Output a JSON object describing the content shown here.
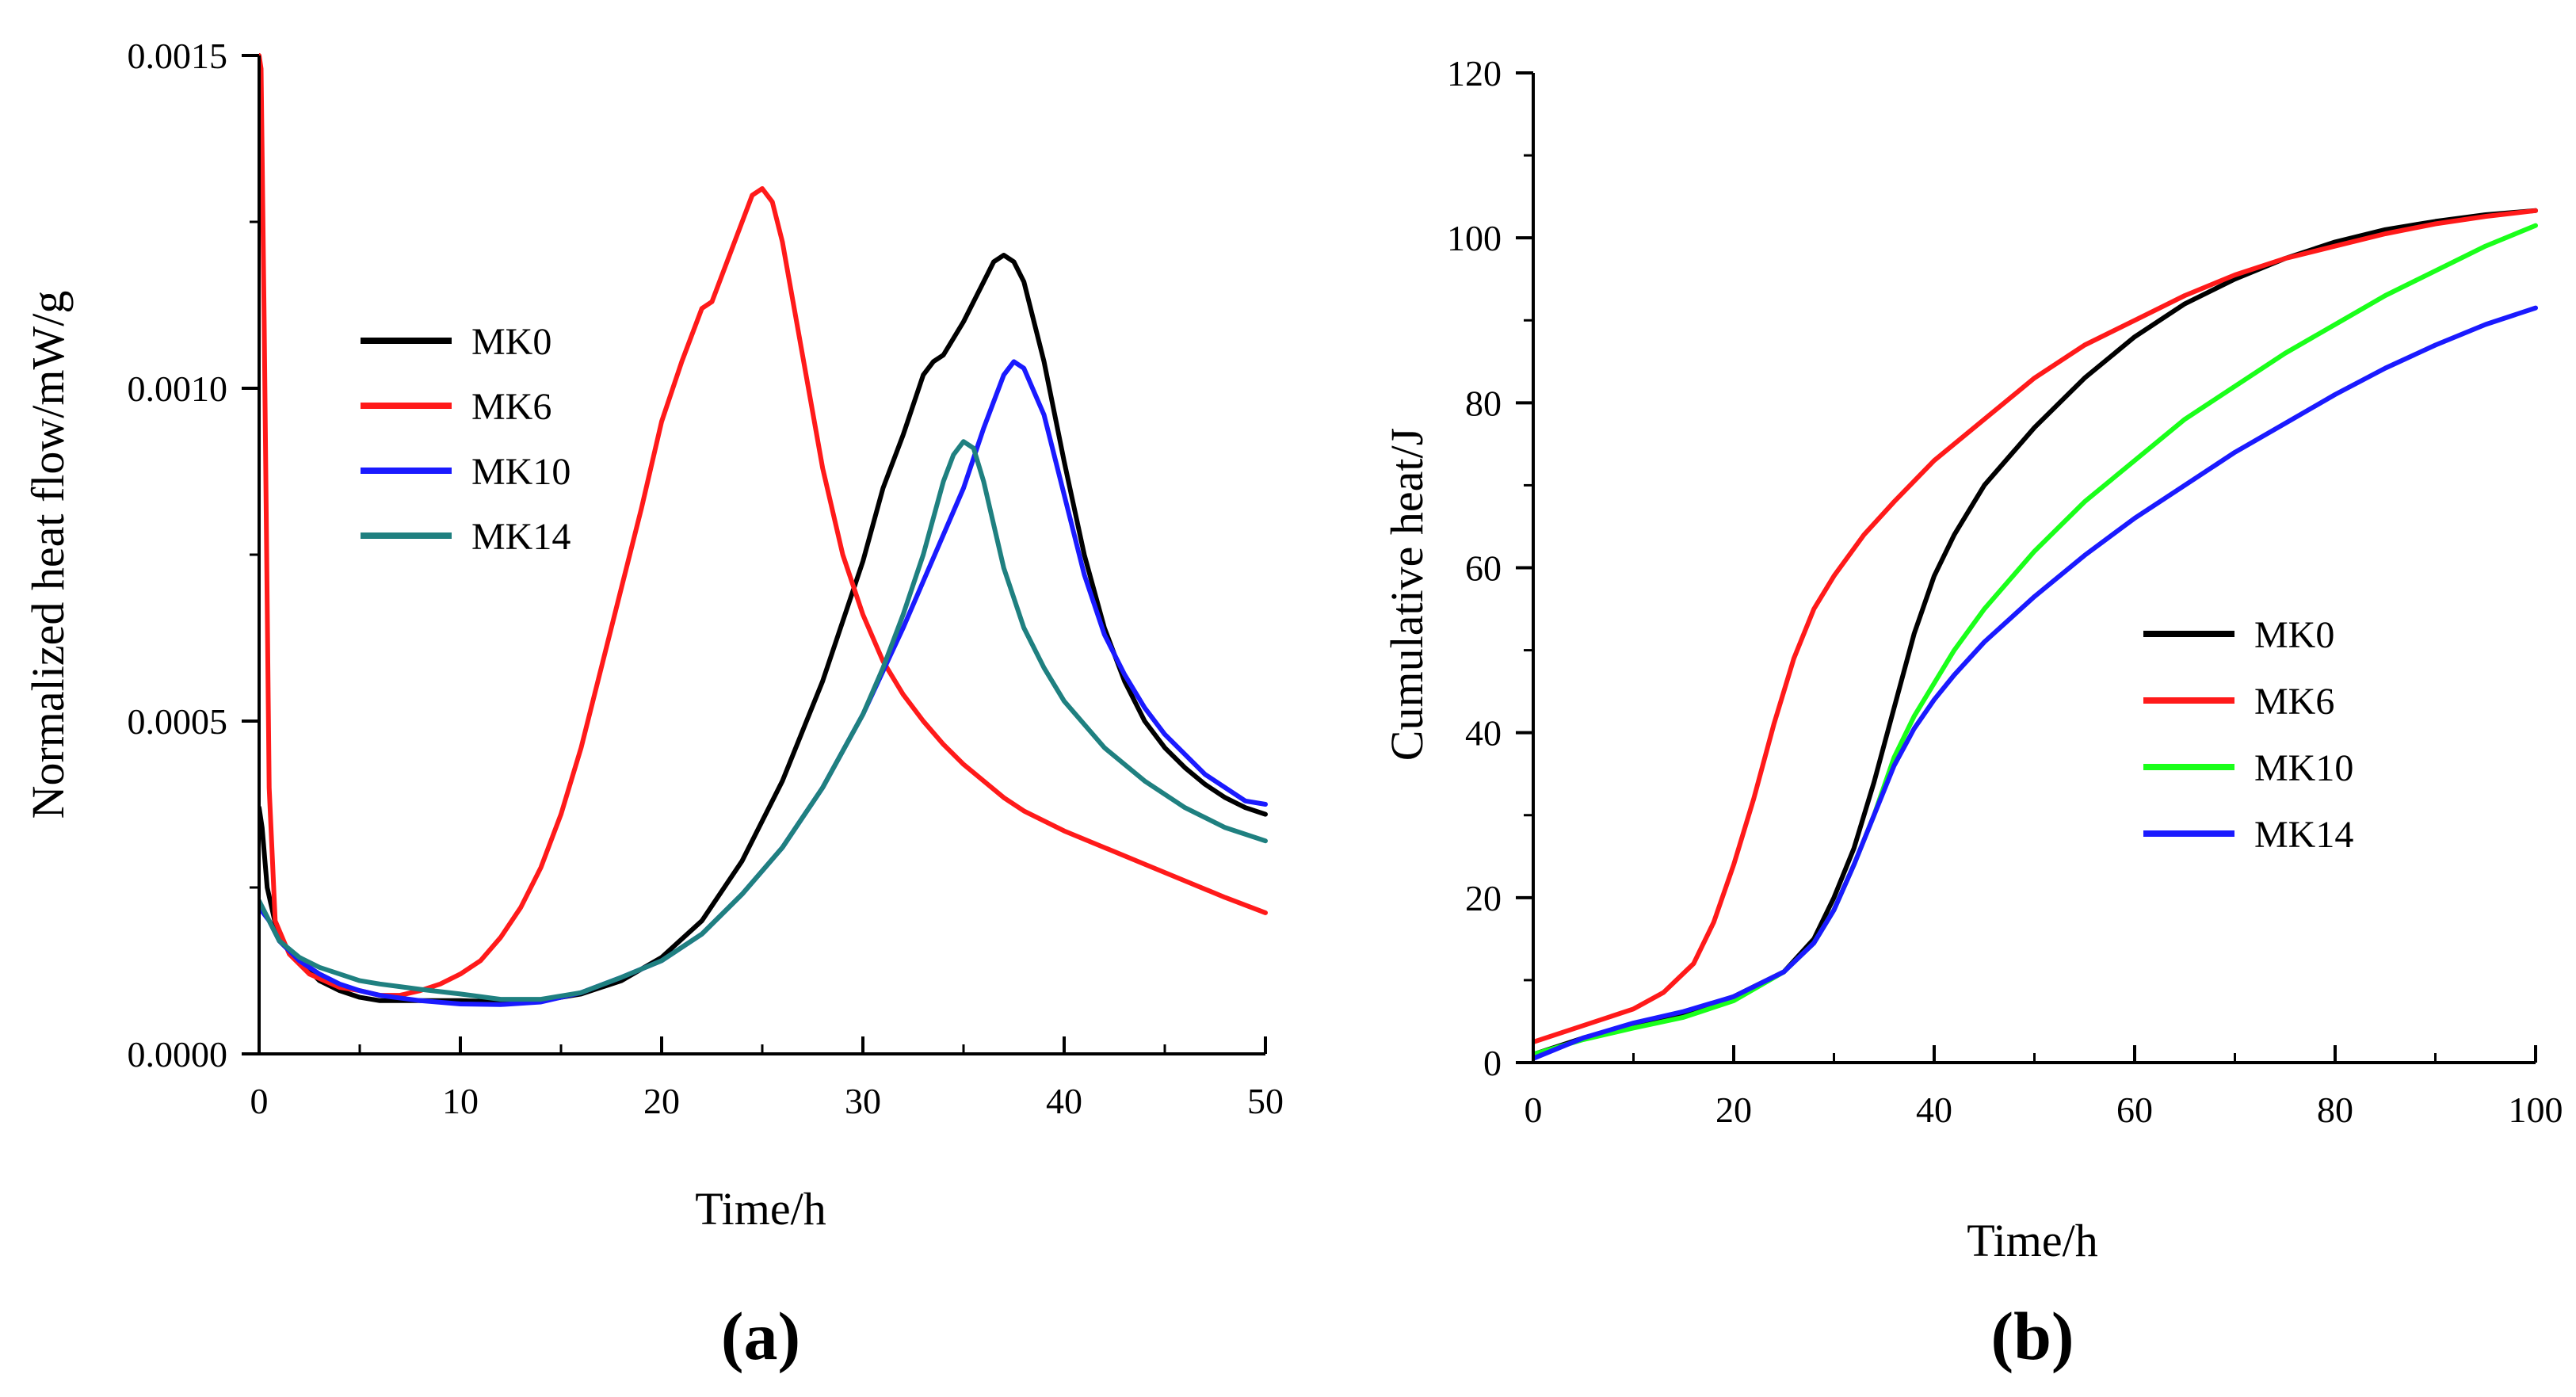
{
  "chart_data": [
    {
      "id": "a",
      "type": "line",
      "caption": "(a)",
      "xlabel": "Time/h",
      "ylabel": "Normalized heat flow/mW/g",
      "xlim": [
        0,
        50
      ],
      "ylim": [
        0,
        0.0015
      ],
      "xticks": [
        0,
        10,
        20,
        30,
        40,
        50
      ],
      "xtick_labels": [
        "0",
        "10",
        "20",
        "30",
        "40",
        "50"
      ],
      "yticks": [
        0,
        0.0005,
        0.001,
        0.0015
      ],
      "ytick_labels": [
        "0.0000",
        "0.0005",
        "0.0010",
        "0.0015"
      ],
      "legend_position": "upper-left",
      "series": [
        {
          "name": "MK0",
          "color": "#000000",
          "x": [
            0,
            0.15,
            0.4,
            1,
            2,
            3,
            4,
            5,
            6,
            7,
            8,
            10,
            12,
            14,
            16,
            18,
            20,
            22,
            24,
            26,
            28,
            30,
            31,
            32,
            33,
            33.5,
            34,
            35,
            36,
            36.5,
            37,
            37.5,
            38,
            39,
            40,
            41,
            42,
            43,
            44,
            45,
            46,
            47,
            48,
            49,
            50
          ],
          "y": [
            0.00037,
            0.00034,
            0.00025,
            0.00017,
            0.00014,
            0.00011,
            9.5e-05,
            8.5e-05,
            8e-05,
            8e-05,
            8e-05,
            8e-05,
            7.8e-05,
            8e-05,
            9e-05,
            0.00011,
            0.000145,
            0.0002,
            0.00029,
            0.00041,
            0.00056,
            0.00074,
            0.00085,
            0.00093,
            0.00102,
            0.00104,
            0.00105,
            0.0011,
            0.00116,
            0.00119,
            0.0012,
            0.00119,
            0.00116,
            0.00104,
            0.00089,
            0.00075,
            0.00064,
            0.00056,
            0.0005,
            0.00046,
            0.00043,
            0.000405,
            0.000385,
            0.00037,
            0.00036
          ]
        },
        {
          "name": "MK6",
          "color": "#ff1a1a",
          "x": [
            0,
            0.1,
            0.25,
            0.5,
            0.8,
            1.5,
            2.5,
            4,
            5,
            6,
            7,
            8,
            9,
            10,
            11,
            12,
            13,
            14,
            15,
            16,
            17,
            18,
            19,
            20,
            21,
            21.5,
            22,
            22.5,
            23,
            23.5,
            24,
            24.5,
            25,
            25.5,
            26,
            27,
            28,
            29,
            30,
            31,
            32,
            33,
            34,
            35,
            36,
            37,
            38,
            40,
            42,
            44,
            46,
            48,
            50
          ],
          "y": [
            0.0015,
            0.00148,
            0.0011,
            0.0004,
            0.0002,
            0.00015,
            0.00012,
            0.0001,
            9.5e-05,
            8.8e-05,
            8.8e-05,
            9.5e-05,
            0.000105,
            0.00012,
            0.00014,
            0.000175,
            0.00022,
            0.00028,
            0.00036,
            0.00046,
            0.00058,
            0.0007,
            0.00082,
            0.00095,
            0.00104,
            0.00108,
            0.00112,
            0.00113,
            0.00117,
            0.00121,
            0.00125,
            0.00129,
            0.0013,
            0.00128,
            0.00122,
            0.00105,
            0.00088,
            0.00075,
            0.00066,
            0.00059,
            0.00054,
            0.0005,
            0.000465,
            0.000435,
            0.00041,
            0.000385,
            0.000365,
            0.000335,
            0.00031,
            0.000285,
            0.00026,
            0.000235,
            0.000212
          ]
        },
        {
          "name": "MK10",
          "color": "#1a1aff",
          "x": [
            0,
            0.5,
            1,
            2,
            3,
            4,
            5,
            6,
            8,
            10,
            12,
            14,
            16,
            18,
            20,
            22,
            24,
            26,
            28,
            30,
            32,
            33,
            34,
            35,
            36,
            37,
            37.5,
            38,
            39,
            40,
            41,
            42,
            43,
            44,
            45,
            46,
            47,
            48,
            49,
            50
          ],
          "y": [
            0.00022,
            0.0002,
            0.00017,
            0.00014,
            0.00012,
            0.000105,
            9.5e-05,
            8.8e-05,
            8e-05,
            7.5e-05,
            7.4e-05,
            7.8e-05,
            9.2e-05,
            0.000115,
            0.00014,
            0.00018,
            0.00024,
            0.00031,
            0.0004,
            0.00051,
            0.00064,
            0.00071,
            0.00078,
            0.00085,
            0.00094,
            0.00102,
            0.00104,
            0.00103,
            0.00096,
            0.00084,
            0.00072,
            0.00063,
            0.00057,
            0.00052,
            0.00048,
            0.00045,
            0.00042,
            0.0004,
            0.00038,
            0.000375
          ]
        },
        {
          "name": "MK14",
          "color": "#1f8080",
          "x": [
            0,
            0.5,
            1,
            2,
            3,
            4,
            5,
            6,
            8,
            10,
            12,
            14,
            16,
            18,
            20,
            22,
            24,
            26,
            28,
            30,
            31,
            32,
            33,
            34,
            34.5,
            35,
            35.5,
            36,
            37,
            38,
            39,
            40,
            42,
            44,
            46,
            48,
            50
          ],
          "y": [
            0.00023,
            0.0002,
            0.00017,
            0.000145,
            0.00013,
            0.00012,
            0.00011,
            0.000105,
            9.7e-05,
            9e-05,
            8.2e-05,
            8.2e-05,
            9.2e-05,
            0.000115,
            0.00014,
            0.00018,
            0.00024,
            0.00031,
            0.0004,
            0.00051,
            0.00058,
            0.00066,
            0.00075,
            0.00086,
            0.0009,
            0.00092,
            0.00091,
            0.00086,
            0.00073,
            0.00064,
            0.00058,
            0.00053,
            0.00046,
            0.00041,
            0.00037,
            0.00034,
            0.00032
          ]
        }
      ]
    },
    {
      "id": "b",
      "type": "line",
      "caption": "(b)",
      "xlabel": "Time/h",
      "ylabel": "Cumulative heat/J",
      "xlim": [
        0,
        100
      ],
      "ylim": [
        0,
        120
      ],
      "xticks": [
        0,
        20,
        40,
        60,
        80,
        100
      ],
      "xtick_labels": [
        "0",
        "20",
        "40",
        "60",
        "80",
        "100"
      ],
      "yticks": [
        0,
        20,
        40,
        60,
        80,
        100,
        120
      ],
      "ytick_labels": [
        "0",
        "20",
        "40",
        "60",
        "80",
        "100",
        "120"
      ],
      "legend_position": "center-right",
      "series": [
        {
          "name": "MK0",
          "color": "#000000",
          "x": [
            0,
            5,
            10,
            15,
            20,
            25,
            28,
            30,
            32,
            34,
            36,
            38,
            40,
            42,
            45,
            50,
            55,
            60,
            65,
            70,
            75,
            80,
            85,
            90,
            95,
            100
          ],
          "y": [
            1,
            3,
            4.5,
            6,
            8,
            11,
            15,
            20,
            26,
            34,
            43,
            52,
            59,
            64,
            70,
            77,
            83,
            88,
            92,
            95,
            97.5,
            99.5,
            101,
            102,
            102.8,
            103.3
          ]
        },
        {
          "name": "MK6",
          "color": "#ff1a1a",
          "x": [
            0,
            5,
            10,
            13,
            16,
            18,
            20,
            22,
            24,
            26,
            28,
            30,
            33,
            36,
            40,
            45,
            50,
            55,
            60,
            65,
            70,
            75,
            80,
            85,
            90,
            95,
            100
          ],
          "y": [
            2.5,
            4.5,
            6.5,
            8.5,
            12,
            17,
            24,
            32,
            41,
            49,
            55,
            59,
            64,
            68,
            73,
            78,
            83,
            87,
            90,
            93,
            95.5,
            97.5,
            99,
            100.5,
            101.7,
            102.6,
            103.3
          ]
        },
        {
          "name": "MK10",
          "color": "#1aff1a",
          "x": [
            0,
            5,
            10,
            15,
            20,
            25,
            28,
            30,
            32,
            34,
            36,
            38,
            40,
            42,
            45,
            50,
            55,
            60,
            65,
            70,
            75,
            80,
            85,
            90,
            95,
            100
          ],
          "y": [
            1,
            2.8,
            4.2,
            5.5,
            7.5,
            11,
            14.5,
            18.5,
            24,
            30,
            37,
            42,
            46,
            50,
            55,
            62,
            68,
            73,
            78,
            82,
            86,
            89.5,
            93,
            96,
            99,
            101.5
          ]
        },
        {
          "name": "MK14",
          "color": "#1a1aff",
          "x": [
            0,
            5,
            10,
            15,
            20,
            25,
            28,
            30,
            32,
            34,
            36,
            38,
            40,
            42,
            45,
            50,
            55,
            60,
            65,
            70,
            75,
            80,
            85,
            90,
            95,
            100
          ],
          "y": [
            0.5,
            3,
            4.8,
            6.2,
            8,
            11,
            14.5,
            18.5,
            24,
            30,
            36,
            40.5,
            44,
            47,
            51,
            56.5,
            61.5,
            66,
            70,
            74,
            77.5,
            81,
            84.2,
            87,
            89.5,
            91.5
          ]
        }
      ]
    }
  ]
}
